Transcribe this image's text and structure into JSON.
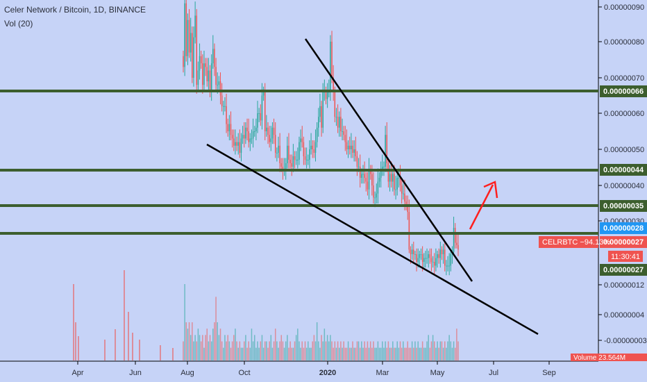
{
  "legend": {
    "symbol_line": "Celer Network / Bitcoin, 1D, BINANCE",
    "volume_line": "Vol (20)"
  },
  "chart_data": {
    "type": "candlestick",
    "symbol": "CELRBTC",
    "interval": "1D",
    "exchange": "BINANCE",
    "price_axis": {
      "ticks": [
        "0.00000090",
        "0.00000080",
        "0.00000070",
        "0.00000060",
        "0.00000050",
        "0.00000040",
        "0.00000030",
        "0.00000020",
        "0.00000012",
        "0.00000004",
        "-0.00000003"
      ]
    },
    "time_axis": {
      "ticks": [
        "Apr",
        "Jun",
        "Aug",
        "Oct",
        "2020",
        "Mar",
        "May",
        "Jul",
        "Sep"
      ]
    },
    "horizontal_levels": [
      {
        "label": "0.00000066",
        "color": "#3c5e2e"
      },
      {
        "label": "0.00000044",
        "color": "#3c5e2e"
      },
      {
        "label": "0.00000035",
        "color": "#3c5e2e"
      },
      {
        "label": "0.00000027",
        "color": "#3c5e2e"
      }
    ],
    "last_price": {
      "label": "0.00000028",
      "color": "#2196f3"
    },
    "ticker_badge": {
      "name": "CELRBTC",
      "change": "−94.13%",
      "value": "0.00000027",
      "countdown": "11:30:41",
      "color": "#ef5350"
    },
    "volume_badge": {
      "label": "Volume",
      "value": "23.564M",
      "color": "#ef5350"
    },
    "colors": {
      "up": "#26a69a",
      "down": "#ef5350",
      "background": "#c6d3f7",
      "trendline": "#000000",
      "arrow": "#ff1f1f",
      "level": "#3c5e2e"
    },
    "candles": {
      "closes": [
        73,
        89,
        76,
        85,
        77,
        82,
        70,
        81,
        86,
        68,
        72,
        76,
        74,
        68,
        74,
        73,
        69,
        72,
        66,
        74,
        78,
        73,
        68,
        68,
        69,
        65,
        62,
        62,
        62,
        57,
        55,
        57,
        54,
        53,
        51,
        52,
        51,
        52,
        49,
        53,
        54,
        53,
        56,
        55,
        52,
        53,
        53,
        55,
        55,
        56,
        60,
        60,
        58,
        65,
        66,
        55,
        56,
        54,
        52,
        53,
        56,
        54,
        49,
        49,
        51,
        46,
        45,
        44,
        44,
        46,
        51,
        47,
        46,
        45,
        48,
        47,
        47,
        47,
        52,
        53,
        52,
        48,
        47,
        47,
        47,
        50,
        51,
        50,
        49,
        52,
        56,
        59,
        62,
        56,
        66,
        66,
        64,
        66,
        66,
        80,
        70,
        66,
        59,
        59,
        56,
        59,
        55,
        55,
        54,
        52,
        50,
        51,
        50,
        51,
        49,
        50,
        48,
        45,
        45,
        42,
        43,
        43,
        42,
        41,
        39,
        44,
        43,
        40,
        37,
        37,
        38,
        41,
        42,
        44,
        45,
        45,
        54,
        46,
        41,
        43,
        41,
        43,
        39,
        39,
        42,
        42,
        40,
        38,
        38,
        36,
        35,
        33,
        22,
        20,
        22,
        20,
        20,
        18,
        19,
        20,
        20,
        18,
        19,
        19,
        19,
        20,
        19,
        18,
        18,
        17,
        19,
        20,
        19,
        22,
        20,
        22,
        17,
        17,
        17,
        17,
        20,
        21,
        28,
        25,
        24,
        22
      ],
      "volumes": [
        3,
        12,
        6,
        5,
        6,
        4,
        6,
        3,
        4,
        3,
        5,
        4,
        3,
        4,
        2,
        4,
        5,
        3,
        4,
        3,
        5,
        6,
        10,
        6,
        4,
        5,
        3,
        2,
        4,
        3,
        4,
        3,
        2,
        3,
        4,
        5,
        3,
        2,
        3,
        2,
        2,
        3,
        4,
        2,
        3,
        2,
        5,
        3,
        4,
        2,
        3,
        2,
        3,
        4,
        2,
        3,
        3,
        2,
        3,
        4,
        2,
        3,
        5,
        3,
        2,
        3,
        4,
        3,
        2,
        3,
        4,
        2,
        3,
        2,
        2,
        3,
        4,
        5,
        3,
        2,
        3,
        2,
        3,
        2,
        3,
        2,
        2,
        3,
        4,
        3,
        6,
        3,
        2,
        4,
        3,
        5,
        3,
        4,
        3,
        4,
        3,
        2,
        3,
        2,
        3,
        2,
        3,
        2,
        3,
        2,
        2,
        3,
        2,
        2,
        3,
        2,
        2,
        3,
        3,
        2,
        3,
        2,
        3,
        2,
        3,
        2,
        3,
        2,
        3,
        2,
        2,
        3,
        2,
        2,
        3,
        2,
        3,
        2,
        3,
        2,
        2,
        3,
        2,
        2,
        3,
        2,
        3,
        2,
        3,
        2,
        2,
        3,
        2,
        2,
        3,
        2,
        3,
        2,
        3,
        2,
        2,
        3,
        2,
        2,
        3,
        4,
        2,
        3,
        4,
        3,
        2,
        3,
        2,
        3,
        3,
        2,
        3,
        2,
        3,
        4,
        3,
        2,
        3,
        2,
        5,
        3
      ]
    }
  }
}
